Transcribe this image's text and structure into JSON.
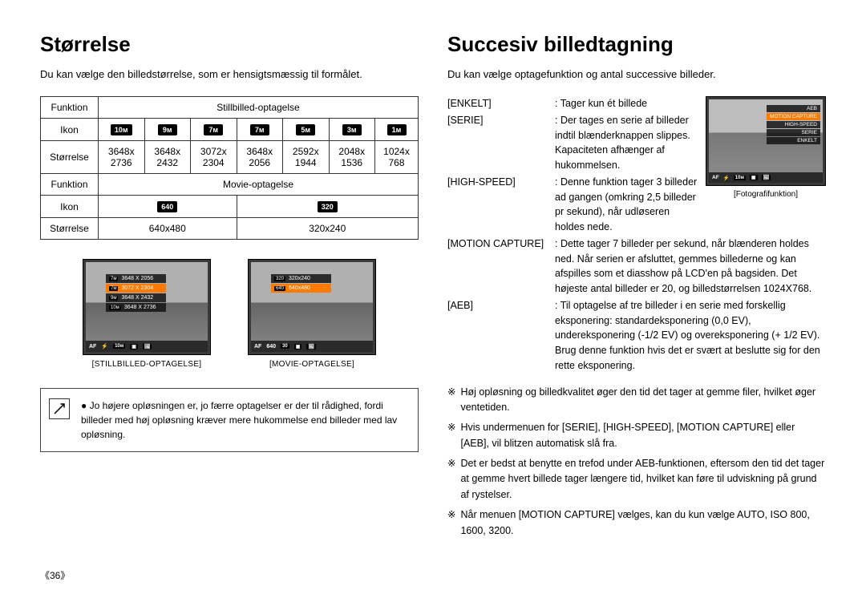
{
  "left": {
    "title": "Størrelse",
    "intro": "Du kan vælge den billedstørrelse, som er hensigtsmæssig til formålet.",
    "table": {
      "r1": {
        "label": "Funktion",
        "merged": "Stillbilled-optagelse"
      },
      "r2": {
        "label": "Ikon",
        "icons": [
          "10ᴍ",
          "9ᴍ",
          "7ᴍ",
          "7ᴍ",
          "5ᴍ",
          "3ᴍ",
          "1ᴍ"
        ]
      },
      "r3": {
        "label": "Størrelse",
        "vals": [
          "3648x 2736",
          "3648x 2432",
          "3072x 2304",
          "3648x 2056",
          "2592x 1944",
          "2048x 1536",
          "1024x 768"
        ]
      },
      "r4": {
        "label": "Funktion",
        "merged": "Movie-optagelse"
      },
      "r5": {
        "label": "Ikon",
        "icons2": [
          "640",
          "320"
        ]
      },
      "r6": {
        "label": "Størrelse",
        "vals2": [
          "640x480",
          "320x240"
        ]
      }
    },
    "thumbs": {
      "still": {
        "menu": [
          {
            "ic": "7ᴍ",
            "txt": "3648 X 2056"
          },
          {
            "ic": "7ᴍ",
            "txt": "3072 X 2304",
            "hl": true
          },
          {
            "ic": "9ᴍ",
            "txt": "3648 X 2432"
          },
          {
            "ic": "10ᴍ",
            "txt": "3648 X 2736"
          }
        ],
        "bar": [
          "AF",
          "⚡",
          "10ᴍ",
          "▣",
          "🖼"
        ],
        "label": "[STILLBILLED-OPTAGELSE]"
      },
      "movie": {
        "menu": [
          {
            "ic": "320",
            "txt": "320x240"
          },
          {
            "ic": "640",
            "txt": "640x480",
            "hl": true
          }
        ],
        "bar": [
          "AF",
          "640",
          "30",
          "▣",
          "🖼"
        ],
        "label": "[MOVIE-OPTAGELSE]"
      }
    },
    "note_bullet": "●",
    "note": "Jo højere opløsningen er, jo færre optagelser er der til rådighed, fordi billeder med høj opløsning kræver mere hukommelse end billeder med lav opløsning."
  },
  "right": {
    "title": "Succesiv billedtagning",
    "intro": "Du kan vælge optagefunktion og antal successive billeder.",
    "thumb": {
      "menu": [
        {
          "txt": "AEB"
        },
        {
          "txt": "MOTION CAPTURE",
          "hl": true
        },
        {
          "txt": "HIGH-SPEED"
        },
        {
          "txt": "SERIE"
        },
        {
          "txt": "ENKELT"
        }
      ],
      "bar": [
        "AF",
        "⚡",
        "10ᴍ",
        "▣",
        "🖼"
      ],
      "label": "[Fotografifunktion]"
    },
    "defs": [
      {
        "term": "[ENKELT]",
        "def": ": Tager kun ét billede"
      },
      {
        "term": "[SERIE]",
        "def": ": Der tages en serie af billeder indtil blænderknappen slippes. Kapaciteten afhænger af hukommelsen."
      },
      {
        "term": "[HIGH-SPEED]",
        "def": ": Denne funktion tager 3 billeder ad gangen (omkring 2,5 billeder pr sekund), når udløseren holdes nede."
      },
      {
        "term": "[MOTION CAPTURE]",
        "def": ": Dette tager 7 billeder per sekund, når blænderen holdes ned. Når serien er afsluttet, gemmes billederne og kan afspilles som et diasshow på LCD'en på bagsiden. Det højeste antal billeder er 20, og billedstørrelsen 1024X768."
      },
      {
        "term": "[AEB]",
        "def": ": Til optagelse af tre billeder i en serie med forskellig eksponering: standardeksponering (0,0 EV), undereksponering (-1/2 EV) og overeksponering (+ 1/2 EV). Brug denne funktion hvis det er svært at beslutte sig for den rette eksponering."
      }
    ],
    "bullet_sym": "※",
    "bullets": [
      "Høj opløsning og billedkvalitet øger den tid det tager at gemme filer, hvilket øger ventetiden.",
      "Hvis undermenuen for [SERIE], [HIGH-SPEED], [MOTION CAPTURE] eller [AEB], vil blitzen automatisk slå fra.",
      "Det er bedst at benytte en trefod under AEB-funktionen, eftersom den tid det tager at gemme hvert billede tager længere tid, hvilket kan føre til udviskning på grund af rystelser.",
      "Når menuen [MOTION CAPTURE] vælges, kan du kun vælge AUTO, ISO 800, 1600, 3200."
    ]
  },
  "page_number": "《36》"
}
